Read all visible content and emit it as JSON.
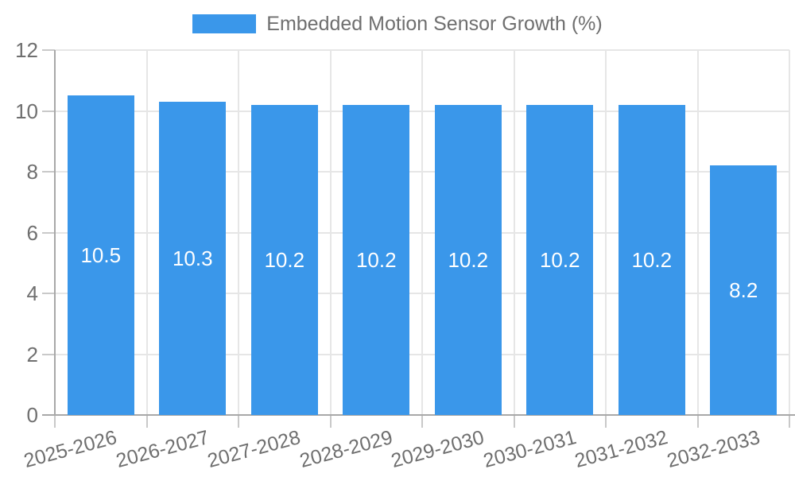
{
  "chart_data": {
    "type": "bar",
    "title": "Embedded Motion Sensor Growth (%)",
    "categories": [
      "2025-2026",
      "2026-2027",
      "2027-2028",
      "2028-2029",
      "2029-2030",
      "2030-2031",
      "2031-2032",
      "2032-2033"
    ],
    "values": [
      10.5,
      10.3,
      10.2,
      10.2,
      10.2,
      10.2,
      10.2,
      8.2
    ],
    "value_labels": [
      "10.5",
      "10.3",
      "10.2",
      "10.2",
      "10.2",
      "10.2",
      "10.2",
      "8.2"
    ],
    "xlabel": "",
    "ylabel": "",
    "ylim": [
      0,
      12
    ],
    "yticks": [
      0,
      2,
      4,
      6,
      8,
      10,
      12
    ],
    "grid": true,
    "legend_position": "top",
    "x_tick_rotation_deg": -15,
    "colors": {
      "bar": "#3a97ea",
      "grid": "#e6e6e6",
      "axis": "#a8a8a8",
      "tick": "#c9c9c9",
      "text": "#6f6f6f",
      "value_text": "#ffffff",
      "background": "#ffffff"
    }
  }
}
